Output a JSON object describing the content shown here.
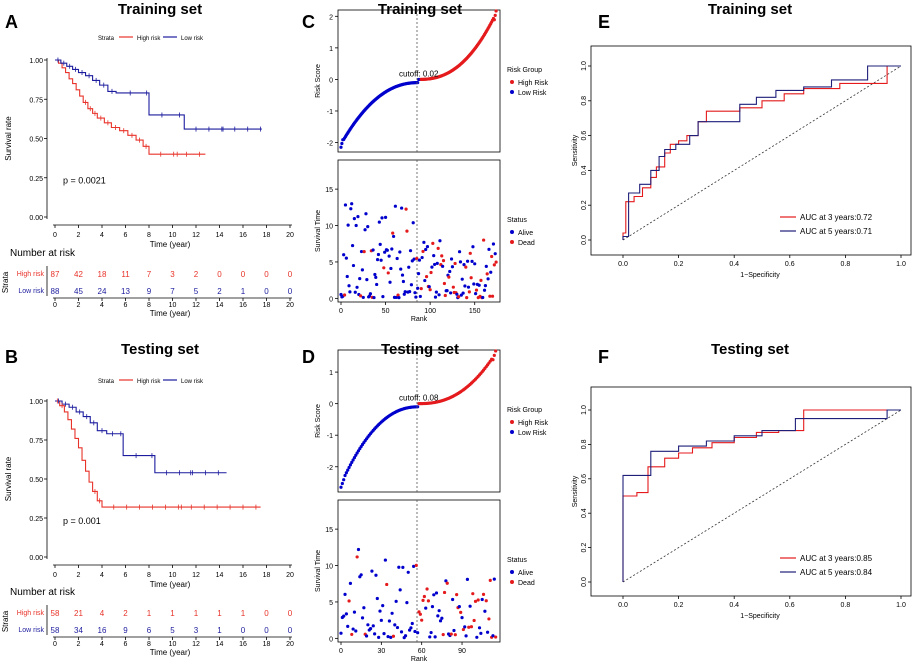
{
  "colors": {
    "high": "#e8332a",
    "low": "#1c1c9e",
    "red": "#e41a1c",
    "blue": "#0000cd",
    "navy": "#1f1f7a"
  },
  "km": [
    {
      "label": "A",
      "title": "Training set",
      "pval": "p = 0.0021",
      "strata_label": "Strata",
      "high_label": "High risk",
      "low_label": "Low risk",
      "xlabel": "Time (year)",
      "ylabel": "Survival rate",
      "xticks": [
        "0",
        "2",
        "4",
        "6",
        "8",
        "10",
        "12",
        "14",
        "16",
        "18",
        "20"
      ],
      "yticks": [
        "0.00",
        "0.25",
        "0.50",
        "0.75",
        "1.00"
      ],
      "risk_title": "Number at risk",
      "risk_strata": "Strata",
      "risk_high_label": "High risk",
      "risk_low_label": "Low risk",
      "risk_high": [
        "87",
        "42",
        "18",
        "11",
        "7",
        "3",
        "2",
        "0",
        "0",
        "0",
        "0"
      ],
      "risk_low": [
        "88",
        "45",
        "24",
        "13",
        "9",
        "7",
        "5",
        "2",
        "1",
        "0",
        "0"
      ],
      "high_curve": [
        [
          0,
          1
        ],
        [
          0.3,
          0.98
        ],
        [
          0.6,
          0.95
        ],
        [
          0.9,
          0.92
        ],
        [
          1.2,
          0.88
        ],
        [
          1.5,
          0.85
        ],
        [
          1.8,
          0.81
        ],
        [
          2.1,
          0.77
        ],
        [
          2.4,
          0.73
        ],
        [
          2.8,
          0.69
        ],
        [
          3.2,
          0.66
        ],
        [
          3.6,
          0.63
        ],
        [
          4.2,
          0.6
        ],
        [
          4.8,
          0.57
        ],
        [
          5.5,
          0.55
        ],
        [
          6.2,
          0.52
        ],
        [
          6.9,
          0.49
        ],
        [
          7.5,
          0.45
        ],
        [
          8,
          0.4
        ],
        [
          12.8,
          0.4
        ]
      ],
      "low_curve": [
        [
          0,
          1
        ],
        [
          0.5,
          0.98
        ],
        [
          1,
          0.96
        ],
        [
          1.5,
          0.94
        ],
        [
          2,
          0.92
        ],
        [
          2.6,
          0.9
        ],
        [
          3.2,
          0.87
        ],
        [
          3.8,
          0.84
        ],
        [
          4.5,
          0.8
        ],
        [
          5.2,
          0.79
        ],
        [
          7.6,
          0.79
        ],
        [
          8,
          0.65
        ],
        [
          10.2,
          0.65
        ],
        [
          11,
          0.56
        ],
        [
          17.6,
          0.56
        ]
      ]
    },
    {
      "label": "B",
      "title": "Testing set",
      "pval": "p = 0.001",
      "strata_label": "Strata",
      "high_label": "High risk",
      "low_label": "Low risk",
      "xlabel": "Time (year)",
      "ylabel": "Survival rate",
      "xticks": [
        "0",
        "2",
        "4",
        "6",
        "8",
        "10",
        "12",
        "14",
        "16",
        "18",
        "20"
      ],
      "yticks": [
        "0.00",
        "0.25",
        "0.50",
        "0.75",
        "1.00"
      ],
      "risk_title": "Number at risk",
      "risk_strata": "Strata",
      "risk_high_label": "High risk",
      "risk_low_label": "Low risk",
      "risk_high": [
        "58",
        "21",
        "4",
        "2",
        "1",
        "1",
        "1",
        "1",
        "1",
        "0",
        "0"
      ],
      "risk_low": [
        "58",
        "34",
        "16",
        "9",
        "6",
        "5",
        "3",
        "1",
        "0",
        "0",
        "0"
      ],
      "high_curve": [
        [
          0,
          1
        ],
        [
          0.4,
          0.97
        ],
        [
          0.8,
          0.93
        ],
        [
          1.1,
          0.88
        ],
        [
          1.4,
          0.82
        ],
        [
          1.7,
          0.76
        ],
        [
          2,
          0.7
        ],
        [
          2.3,
          0.62
        ],
        [
          2.6,
          0.55
        ],
        [
          2.9,
          0.48
        ],
        [
          3.2,
          0.42
        ],
        [
          3.6,
          0.36
        ],
        [
          4,
          0.32
        ],
        [
          17.5,
          0.32
        ]
      ],
      "low_curve": [
        [
          0,
          1
        ],
        [
          0.6,
          0.98
        ],
        [
          1.2,
          0.96
        ],
        [
          1.8,
          0.93
        ],
        [
          2.4,
          0.9
        ],
        [
          3,
          0.86
        ],
        [
          3.6,
          0.81
        ],
        [
          4.4,
          0.79
        ],
        [
          5.4,
          0.79
        ],
        [
          5.8,
          0.65
        ],
        [
          8,
          0.65
        ],
        [
          8.5,
          0.54
        ],
        [
          14.6,
          0.54
        ]
      ]
    }
  ],
  "risk": [
    {
      "label": "C",
      "title": "Training set",
      "cutoff_label": "cutoff: 0.02",
      "ylabel": "Risk Score",
      "yticks": [
        "-2",
        "-1",
        "0",
        "1",
        "2"
      ],
      "ylim": [
        -2.3,
        2.2
      ],
      "n": 175,
      "split": 90,
      "legend_title": "Risk Group",
      "legend_high": "High Risk",
      "legend_low": "Low Risk",
      "st_ylabel": "Survival Time",
      "st_yticks": [
        "0",
        "5",
        "10",
        "15"
      ],
      "st_ylim": [
        -0.5,
        19
      ],
      "xlabel": "Rank",
      "xticks": [
        "0",
        "50",
        "100",
        "150"
      ],
      "status_title": "Status",
      "status_alive": "Alive",
      "status_dead": "Dead"
    },
    {
      "label": "D",
      "title": "Testing set",
      "cutoff_label": "cutoff: 0.08",
      "ylabel": "Risk Score",
      "yticks": [
        "-2",
        "-1",
        "0",
        "1"
      ],
      "ylim": [
        -2.8,
        1.7
      ],
      "n": 116,
      "split": 58,
      "legend_title": "Risk Group",
      "legend_high": "High Risk",
      "legend_low": "Low Risk",
      "st_ylabel": "Survival Time",
      "st_yticks": [
        "0",
        "5",
        "10",
        "15"
      ],
      "st_ylim": [
        -0.5,
        19
      ],
      "xlabel": "Rank",
      "xticks": [
        "0",
        "30",
        "60",
        "90"
      ],
      "status_title": "Status",
      "status_alive": "Alive",
      "status_dead": "Dead"
    }
  ],
  "roc": [
    {
      "label": "E",
      "title": "Training set",
      "xlabel": "1−Specificity",
      "ylabel": "Sensitivity",
      "ticks": [
        "0.0",
        "0.2",
        "0.4",
        "0.6",
        "0.8",
        "1.0"
      ],
      "legend3": "AUC at 3 years:0.72",
      "legend5": "AUC at 5 years:0.71",
      "auc3": 0.72,
      "auc5": 0.71,
      "curve3": [
        [
          0,
          0
        ],
        [
          0,
          0.04
        ],
        [
          0.01,
          0.04
        ],
        [
          0.01,
          0.22
        ],
        [
          0.04,
          0.22
        ],
        [
          0.04,
          0.25
        ],
        [
          0.07,
          0.25
        ],
        [
          0.07,
          0.3
        ],
        [
          0.1,
          0.3
        ],
        [
          0.1,
          0.36
        ],
        [
          0.12,
          0.36
        ],
        [
          0.12,
          0.42
        ],
        [
          0.15,
          0.42
        ],
        [
          0.15,
          0.5
        ],
        [
          0.17,
          0.5
        ],
        [
          0.17,
          0.55
        ],
        [
          0.2,
          0.55
        ],
        [
          0.2,
          0.57
        ],
        [
          0.23,
          0.57
        ],
        [
          0.23,
          0.6
        ],
        [
          0.27,
          0.6
        ],
        [
          0.27,
          0.68
        ],
        [
          0.3,
          0.68
        ],
        [
          0.3,
          0.74
        ],
        [
          0.42,
          0.74
        ],
        [
          0.42,
          0.76
        ],
        [
          0.5,
          0.76
        ],
        [
          0.5,
          0.8
        ],
        [
          0.58,
          0.8
        ],
        [
          0.58,
          0.84
        ],
        [
          0.65,
          0.84
        ],
        [
          0.65,
          0.87
        ],
        [
          0.78,
          0.87
        ],
        [
          0.78,
          0.9
        ],
        [
          0.95,
          0.9
        ],
        [
          0.95,
          1
        ],
        [
          1,
          1
        ]
      ],
      "curve5": [
        [
          0,
          0
        ],
        [
          0,
          0.02
        ],
        [
          0.02,
          0.02
        ],
        [
          0.02,
          0.27
        ],
        [
          0.06,
          0.27
        ],
        [
          0.06,
          0.32
        ],
        [
          0.1,
          0.32
        ],
        [
          0.1,
          0.4
        ],
        [
          0.13,
          0.4
        ],
        [
          0.13,
          0.48
        ],
        [
          0.15,
          0.48
        ],
        [
          0.15,
          0.52
        ],
        [
          0.19,
          0.52
        ],
        [
          0.19,
          0.55
        ],
        [
          0.24,
          0.55
        ],
        [
          0.24,
          0.6
        ],
        [
          0.27,
          0.6
        ],
        [
          0.27,
          0.68
        ],
        [
          0.42,
          0.68
        ],
        [
          0.42,
          0.78
        ],
        [
          0.48,
          0.78
        ],
        [
          0.48,
          0.82
        ],
        [
          0.55,
          0.82
        ],
        [
          0.55,
          0.86
        ],
        [
          0.65,
          0.86
        ],
        [
          0.65,
          0.88
        ],
        [
          0.75,
          0.88
        ],
        [
          0.75,
          0.92
        ],
        [
          0.88,
          0.92
        ],
        [
          0.88,
          1
        ],
        [
          1,
          1
        ]
      ]
    },
    {
      "label": "F",
      "title": "Testing set",
      "xlabel": "1−Specificity",
      "ylabel": "Sensitivity",
      "ticks": [
        "0.0",
        "0.2",
        "0.4",
        "0.6",
        "0.8",
        "1.0"
      ],
      "legend3": "AUC at 3 years:0.85",
      "legend5": "AUC at 5 years:0.84",
      "auc3": 0.85,
      "auc5": 0.84,
      "curve3": [
        [
          0,
          0
        ],
        [
          0,
          0.5
        ],
        [
          0.05,
          0.5
        ],
        [
          0.05,
          0.52
        ],
        [
          0.09,
          0.52
        ],
        [
          0.09,
          0.67
        ],
        [
          0.15,
          0.67
        ],
        [
          0.15,
          0.72
        ],
        [
          0.2,
          0.72
        ],
        [
          0.2,
          0.75
        ],
        [
          0.25,
          0.75
        ],
        [
          0.25,
          0.78
        ],
        [
          0.32,
          0.78
        ],
        [
          0.32,
          0.81
        ],
        [
          0.4,
          0.81
        ],
        [
          0.4,
          0.84
        ],
        [
          0.48,
          0.84
        ],
        [
          0.48,
          0.87
        ],
        [
          0.56,
          0.87
        ],
        [
          0.56,
          0.88
        ],
        [
          0.65,
          0.88
        ],
        [
          0.65,
          1
        ],
        [
          1,
          1
        ]
      ],
      "curve5": [
        [
          0,
          0
        ],
        [
          0,
          0.62
        ],
        [
          0.06,
          0.62
        ],
        [
          0.06,
          0.62
        ],
        [
          0.1,
          0.62
        ],
        [
          0.1,
          0.76
        ],
        [
          0.2,
          0.76
        ],
        [
          0.2,
          0.79
        ],
        [
          0.3,
          0.79
        ],
        [
          0.3,
          0.82
        ],
        [
          0.4,
          0.82
        ],
        [
          0.4,
          0.85
        ],
        [
          0.5,
          0.85
        ],
        [
          0.5,
          0.88
        ],
        [
          0.62,
          0.88
        ],
        [
          0.62,
          0.95
        ],
        [
          0.95,
          0.95
        ],
        [
          0.95,
          1
        ],
        [
          1,
          1
        ]
      ]
    }
  ],
  "chart_data": [
    {
      "type": "line",
      "panel": "A",
      "title": "Training set",
      "xlabel": "Time (year)",
      "ylabel": "Survival rate",
      "xlim": [
        0,
        20
      ],
      "ylim": [
        0,
        1
      ],
      "series": [
        {
          "name": "High risk"
        },
        {
          "name": "Low risk"
        }
      ],
      "p_value": 0.0021
    },
    {
      "type": "line",
      "panel": "B",
      "title": "Testing set",
      "xlabel": "Time (year)",
      "ylabel": "Survival rate",
      "xlim": [
        0,
        20
      ],
      "ylim": [
        0,
        1
      ],
      "series": [
        {
          "name": "High risk"
        },
        {
          "name": "Low risk"
        }
      ],
      "p_value": 0.001
    },
    {
      "type": "scatter",
      "panel": "C",
      "title": "Training set",
      "xlabel": "Rank",
      "ylabel": "Risk Score",
      "cutoff": 0.02,
      "n": 175
    },
    {
      "type": "scatter",
      "panel": "D",
      "title": "Testing set",
      "xlabel": "Rank",
      "ylabel": "Risk Score",
      "cutoff": 0.08,
      "n": 116
    },
    {
      "type": "line",
      "panel": "E",
      "title": "Training set",
      "xlabel": "1−Specificity",
      "ylabel": "Sensitivity",
      "xlim": [
        0,
        1
      ],
      "ylim": [
        0,
        1
      ],
      "series": [
        {
          "name": "AUC at 3 years",
          "auc": 0.72
        },
        {
          "name": "AUC at 5 years",
          "auc": 0.71
        }
      ]
    },
    {
      "type": "line",
      "panel": "F",
      "title": "Testing set",
      "xlabel": "1−Specificity",
      "ylabel": "Sensitivity",
      "xlim": [
        0,
        1
      ],
      "ylim": [
        0,
        1
      ],
      "series": [
        {
          "name": "AUC at 3 years",
          "auc": 0.85
        },
        {
          "name": "AUC at 5 years",
          "auc": 0.84
        }
      ]
    }
  ]
}
